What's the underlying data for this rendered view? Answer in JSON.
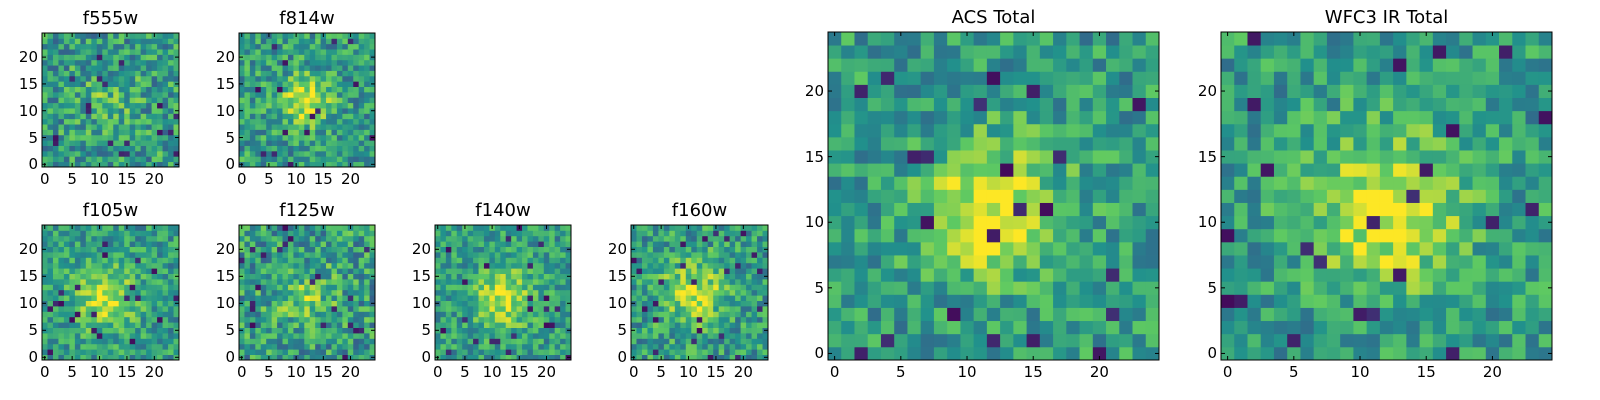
{
  "chart_data": [
    {
      "type": "heatmap",
      "title": "f555w",
      "grid_size": 25,
      "xlim": [
        0,
        24
      ],
      "ylim": [
        0,
        24
      ],
      "xticks": [
        0,
        5,
        10,
        15,
        20
      ],
      "yticks": [
        0,
        5,
        10,
        15,
        20
      ],
      "xtick_labels": [
        "0",
        "5",
        "10",
        "15",
        "20"
      ],
      "ytick_labels": [
        "0",
        "5",
        "10",
        "15",
        "20"
      ],
      "colormap": "viridis",
      "peak_center": [
        12,
        12
      ],
      "peak_strength": 0.15,
      "peak_width": 3.5,
      "noise_level": 0.5
    },
    {
      "type": "heatmap",
      "title": "f814w",
      "grid_size": 25,
      "xlim": [
        0,
        24
      ],
      "ylim": [
        0,
        24
      ],
      "xticks": [
        0,
        5,
        10,
        15,
        20
      ],
      "yticks": [
        0,
        5,
        10,
        15,
        20
      ],
      "xtick_labels": [
        "0",
        "5",
        "10",
        "15",
        "20"
      ],
      "ytick_labels": [
        "0",
        "5",
        "10",
        "15",
        "20"
      ],
      "colormap": "viridis",
      "peak_center": [
        12,
        12
      ],
      "peak_strength": 0.45,
      "peak_width": 3,
      "noise_level": 0.45
    },
    {
      "type": "heatmap",
      "title": "f105w",
      "grid_size": 25,
      "xlim": [
        0,
        24
      ],
      "ylim": [
        0,
        24
      ],
      "xticks": [
        0,
        5,
        10,
        15,
        20
      ],
      "yticks": [
        0,
        5,
        10,
        15,
        20
      ],
      "xtick_labels": [
        "0",
        "5",
        "10",
        "15",
        "20"
      ],
      "ytick_labels": [
        "0",
        "5",
        "10",
        "15",
        "20"
      ],
      "colormap": "viridis",
      "peak_center": [
        11,
        11
      ],
      "peak_strength": 0.35,
      "peak_width": 4,
      "noise_level": 0.4
    },
    {
      "type": "heatmap",
      "title": "f125w",
      "grid_size": 25,
      "xlim": [
        0,
        24
      ],
      "ylim": [
        0,
        24
      ],
      "xticks": [
        0,
        5,
        10,
        15,
        20
      ],
      "yticks": [
        0,
        5,
        10,
        15,
        20
      ],
      "xtick_labels": [
        "0",
        "5",
        "10",
        "15",
        "20"
      ],
      "ytick_labels": [
        "0",
        "5",
        "10",
        "15",
        "20"
      ],
      "colormap": "viridis",
      "peak_center": [
        12,
        11
      ],
      "peak_strength": 0.2,
      "peak_width": 4,
      "noise_level": 0.5
    },
    {
      "type": "heatmap",
      "title": "f140w",
      "grid_size": 25,
      "xlim": [
        0,
        24
      ],
      "ylim": [
        0,
        24
      ],
      "xticks": [
        0,
        5,
        10,
        15,
        20
      ],
      "yticks": [
        0,
        5,
        10,
        15,
        20
      ],
      "xtick_labels": [
        "0",
        "5",
        "10",
        "15",
        "20"
      ],
      "ytick_labels": [
        "0",
        "5",
        "10",
        "15",
        "20"
      ],
      "colormap": "viridis",
      "peak_center": [
        12,
        11
      ],
      "peak_strength": 0.35,
      "peak_width": 4,
      "noise_level": 0.4
    },
    {
      "type": "heatmap",
      "title": "f160w",
      "grid_size": 25,
      "xlim": [
        0,
        24
      ],
      "ylim": [
        0,
        24
      ],
      "xticks": [
        0,
        5,
        10,
        15,
        20
      ],
      "yticks": [
        0,
        5,
        10,
        15,
        20
      ],
      "xtick_labels": [
        "0",
        "5",
        "10",
        "15",
        "20"
      ],
      "ytick_labels": [
        "0",
        "5",
        "10",
        "15",
        "20"
      ],
      "colormap": "viridis",
      "peak_center": [
        11,
        12
      ],
      "peak_strength": 0.35,
      "peak_width": 4,
      "noise_level": 0.45
    },
    {
      "type": "heatmap",
      "title": "ACS Total",
      "grid_size": 25,
      "xlim": [
        0,
        24
      ],
      "ylim": [
        0,
        24
      ],
      "xticks": [
        0,
        5,
        10,
        15,
        20
      ],
      "yticks": [
        0,
        5,
        10,
        15,
        20
      ],
      "xtick_labels": [
        "0",
        "5",
        "10",
        "15",
        "20"
      ],
      "ytick_labels": [
        "0",
        "5",
        "10",
        "15",
        "20"
      ],
      "colormap": "viridis",
      "peak_center": [
        12,
        11
      ],
      "peak_strength": 0.45,
      "peak_width": 3.5,
      "noise_level": 0.4
    },
    {
      "type": "heatmap",
      "title": "WFC3 IR Total",
      "grid_size": 25,
      "xlim": [
        0,
        24
      ],
      "ylim": [
        0,
        24
      ],
      "xticks": [
        0,
        5,
        10,
        15,
        20
      ],
      "yticks": [
        0,
        5,
        10,
        15,
        20
      ],
      "xtick_labels": [
        "0",
        "5",
        "10",
        "15",
        "20"
      ],
      "ytick_labels": [
        "0",
        "5",
        "10",
        "15",
        "20"
      ],
      "colormap": "viridis",
      "peak_center": [
        12,
        11
      ],
      "peak_strength": 0.45,
      "peak_width": 4,
      "noise_level": 0.4
    }
  ]
}
